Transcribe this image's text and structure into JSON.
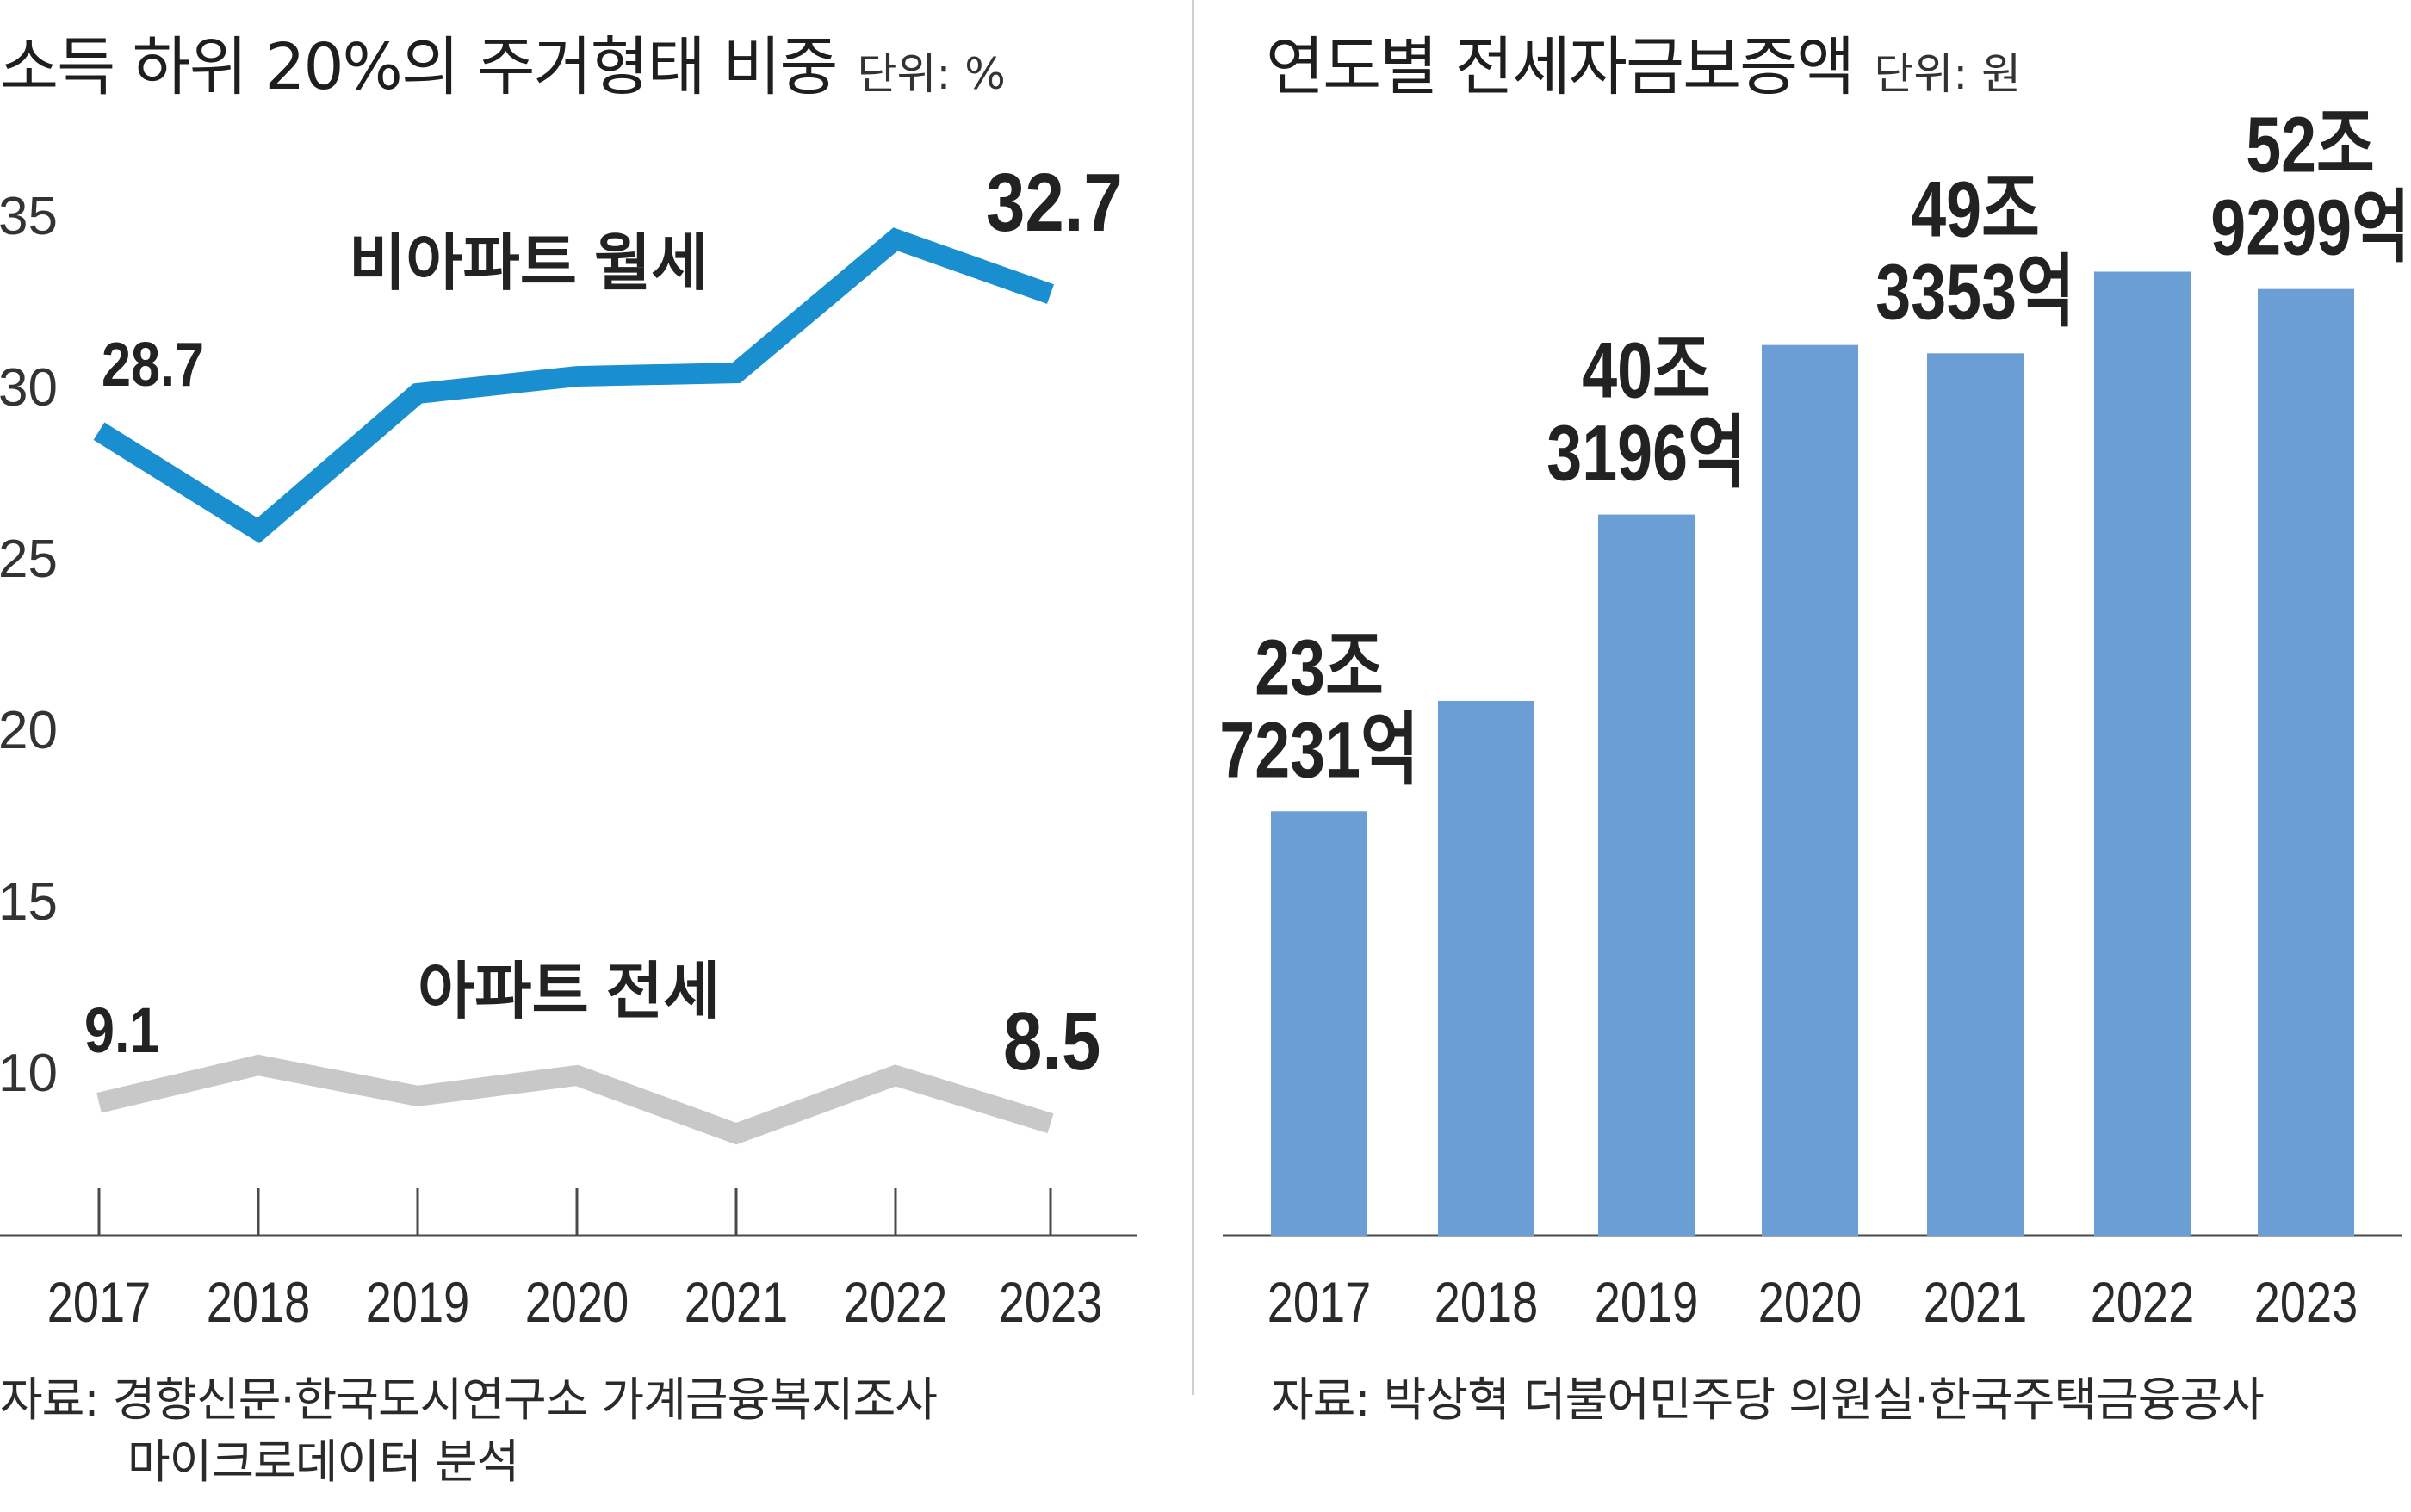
{
  "left": {
    "title": "소득 하위 20%의 주거형태 비중",
    "unit": "단위: %",
    "source_line1": "자료: 경향신문·한국도시연구소 가계금융복지조사",
    "source_line2": "마이크로데이터 분석"
  },
  "right": {
    "title": "연도별 전세자금보증액",
    "unit": "단위: 원",
    "source": "자료: 박상혁 더불어민주당 의원실·한국주택금융공사"
  },
  "colors": {
    "line_nonapt": "#1a8fd0",
    "line_apt": "#c8c8c8",
    "bar": "#6b9ed4",
    "axis": "#4a4a4a",
    "text": "#222222"
  },
  "chart_data": [
    {
      "type": "line",
      "title": "소득 하위 20%의 주거형태 비중",
      "unit": "단위: %",
      "x": [
        "2017",
        "2018",
        "2019",
        "2020",
        "2021",
        "2022",
        "2023"
      ],
      "yticks": [
        "10",
        "15",
        "20",
        "25",
        "30",
        "35"
      ],
      "ylim": [
        5,
        37
      ],
      "grid": false,
      "series": [
        {
          "name": "비아파트 월세",
          "color": "#1a8fd0",
          "values": [
            28.7,
            25.8,
            29.8,
            30.3,
            30.4,
            34.3,
            32.7
          ],
          "labels": [
            {
              "index": 0,
              "text": "28.7"
            },
            {
              "index": 6,
              "text": "32.7"
            }
          ]
        },
        {
          "name": "아파트 전세",
          "color": "#c8c8c8",
          "values": [
            9.1,
            10.2,
            9.3,
            9.9,
            8.2,
            9.9,
            8.5
          ],
          "labels": [
            {
              "index": 0,
              "text": "9.1"
            },
            {
              "index": 6,
              "text": "8.5"
            }
          ]
        }
      ]
    },
    {
      "type": "bar",
      "title": "연도별 전세자금보증액",
      "unit": "단위: 원",
      "categories": [
        "2017",
        "2018",
        "2019",
        "2020",
        "2021",
        "2022",
        "2023"
      ],
      "values": [
        23.7231,
        29.9,
        40.3196,
        49.8,
        49.3353,
        53.9,
        52.9299
      ],
      "ylim": [
        0,
        60
      ],
      "color": "#6b9ed4",
      "labels": [
        {
          "index": 0,
          "lines": [
            "23조",
            "7231억"
          ]
        },
        {
          "index": 2,
          "lines": [
            "40조",
            "3196억"
          ]
        },
        {
          "index": 4,
          "lines": [
            "49조",
            "3353억"
          ]
        },
        {
          "index": 6,
          "lines": [
            "52조",
            "9299억"
          ]
        }
      ]
    }
  ]
}
